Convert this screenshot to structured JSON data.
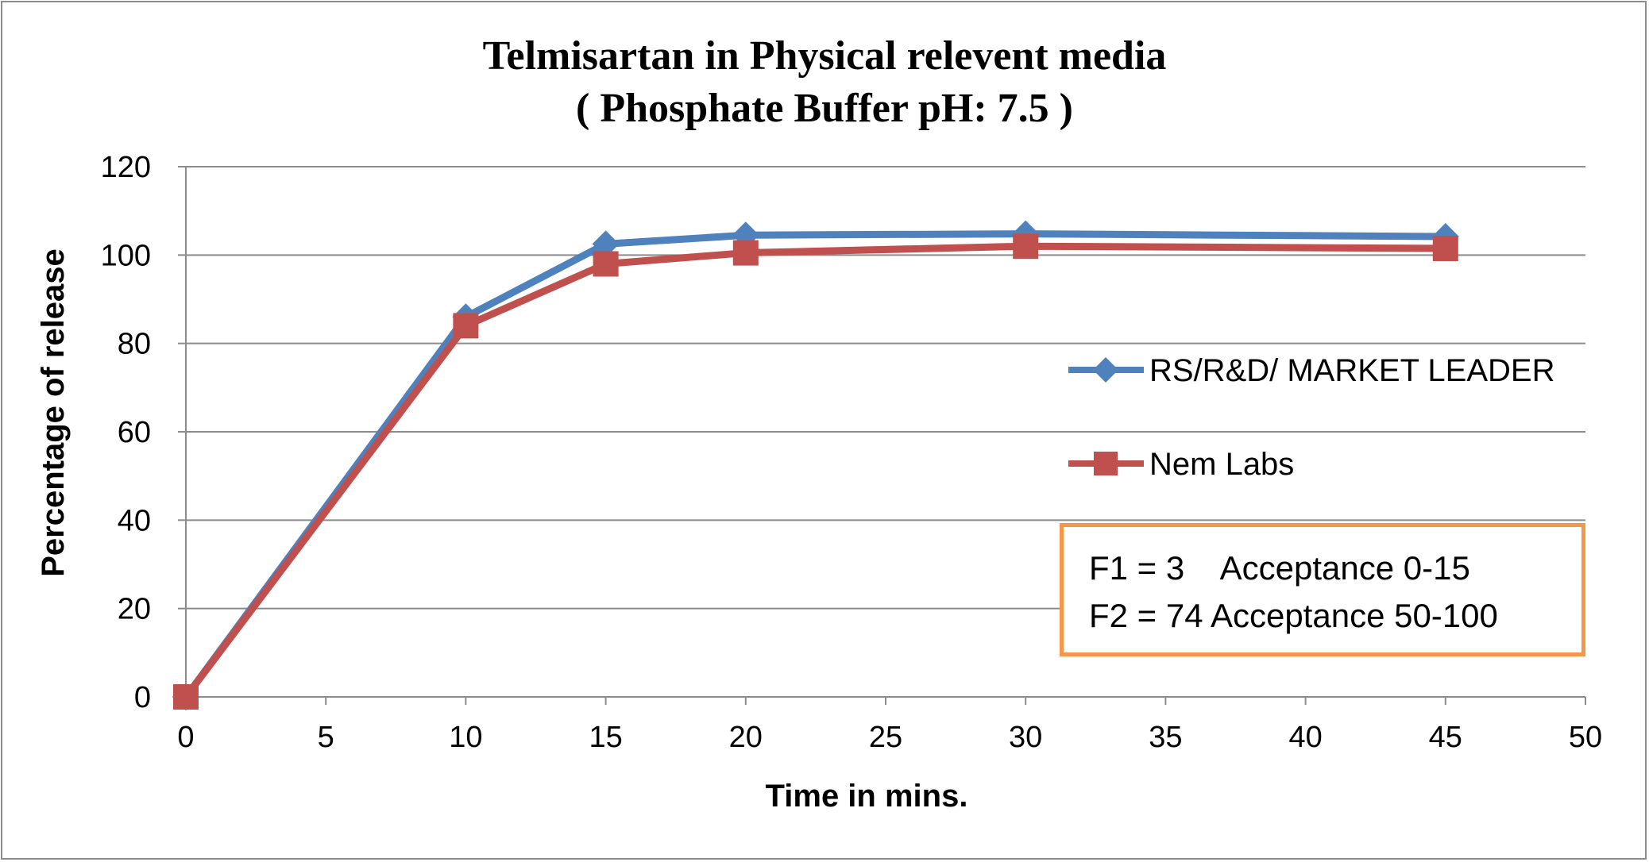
{
  "chart_data": {
    "type": "line",
    "title": [
      "Telmisartan in Physical relevent media",
      "( Phosphate Buffer pH: 7.5 )"
    ],
    "xlabel": "Time in mins.",
    "ylabel": "Percentage of release",
    "xlim": [
      0,
      50
    ],
    "ylim": [
      0,
      120
    ],
    "xticks": [
      "0",
      "5",
      "10",
      "15",
      "20",
      "25",
      "30",
      "35",
      "40",
      "45",
      "50"
    ],
    "yticks": [
      "0",
      "20",
      "40",
      "60",
      "80",
      "100",
      "120"
    ],
    "grid": "horizontal",
    "legend_position": "right",
    "x": [
      0,
      10,
      15,
      20,
      30,
      45
    ],
    "series": [
      {
        "name": "RS/R&D/ MARKET LEADER",
        "color": "#4f81bd",
        "marker": "diamond",
        "values": [
          0,
          86,
          102.5,
          104.5,
          104.8,
          104.2
        ]
      },
      {
        "name": "Nem Labs",
        "color": "#c0504d",
        "marker": "square",
        "values": [
          0,
          84,
          98,
          100.5,
          102,
          101.5
        ]
      }
    ],
    "annotations": [
      "F1 = 3    Acceptance 0-15",
      "F2 = 74 Acceptance 50-100"
    ],
    "annotation_border_color": "#f79646"
  }
}
